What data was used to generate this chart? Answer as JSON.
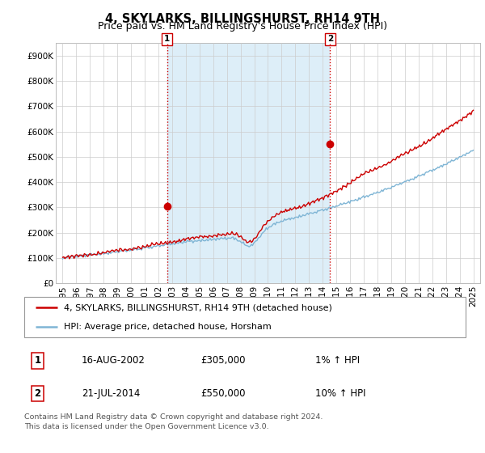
{
  "title": "4, SKYLARKS, BILLINGSHURST, RH14 9TH",
  "subtitle": "Price paid vs. HM Land Registry's House Price Index (HPI)",
  "ylabel_ticks": [
    "£0",
    "£100K",
    "£200K",
    "£300K",
    "£400K",
    "£500K",
    "£600K",
    "£700K",
    "£800K",
    "£900K"
  ],
  "ytick_values": [
    0,
    100000,
    200000,
    300000,
    400000,
    500000,
    600000,
    700000,
    800000,
    900000
  ],
  "ylim": [
    0,
    950000
  ],
  "xlim_start": 1994.5,
  "xlim_end": 2025.5,
  "sale1_date": 2002.62,
  "sale1_price": 305000,
  "sale2_date": 2014.54,
  "sale2_price": 550000,
  "hpi_color": "#7fb5d5",
  "price_color": "#cc0000",
  "vline_color": "#cc0000",
  "fill_color": "#ddeef8",
  "grid_color": "#cccccc",
  "background_color": "#ffffff",
  "legend_line1": "4, SKYLARKS, BILLINGSHURST, RH14 9TH (detached house)",
  "legend_line2": "HPI: Average price, detached house, Horsham",
  "table_row1": [
    "1",
    "16-AUG-2002",
    "£305,000",
    "1% ↑ HPI"
  ],
  "table_row2": [
    "2",
    "21-JUL-2014",
    "£550,000",
    "10% ↑ HPI"
  ],
  "footnote": "Contains HM Land Registry data © Crown copyright and database right 2024.\nThis data is licensed under the Open Government Licence v3.0.",
  "title_fontsize": 10.5,
  "subtitle_fontsize": 9,
  "tick_fontsize": 7.5,
  "legend_fontsize": 8,
  "table_fontsize": 8.5,
  "footnote_fontsize": 6.8
}
